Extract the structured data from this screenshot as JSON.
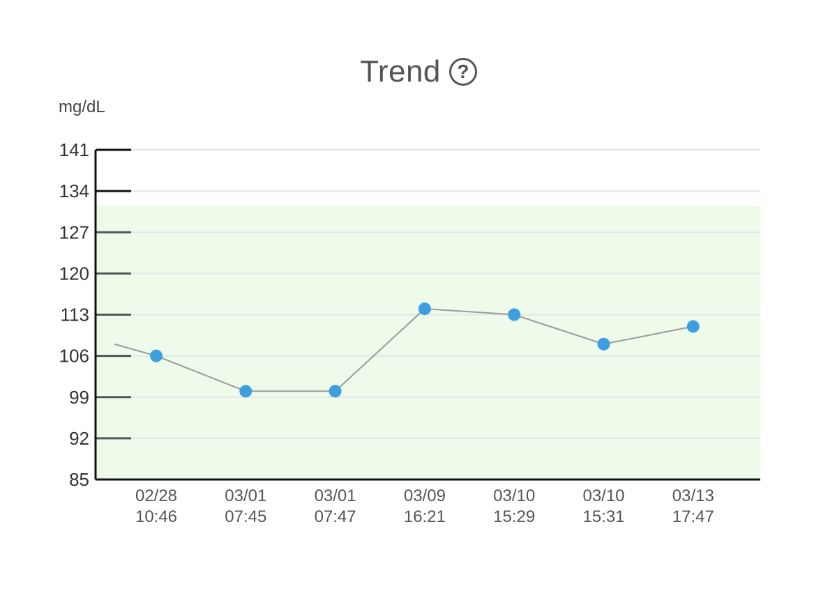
{
  "header": {
    "title": "Trend",
    "help_icon_label": "?"
  },
  "chart_data": {
    "type": "line",
    "ylabel": "mg/dL",
    "ylim": [
      85,
      141
    ],
    "yticks": [
      "141",
      "134",
      "127",
      "120",
      "113",
      "106",
      "99",
      "92",
      "85"
    ],
    "target_range": [
      85,
      131.5
    ],
    "categories": [
      [
        "02/28",
        "10:46"
      ],
      [
        "03/01",
        "07:45"
      ],
      [
        "03/01",
        "07:47"
      ],
      [
        "03/09",
        "16:21"
      ],
      [
        "03/10",
        "15:29"
      ],
      [
        "03/10",
        "15:31"
      ],
      [
        "03/13",
        "17:47"
      ]
    ],
    "values": [
      106,
      100,
      100,
      114,
      113,
      108,
      111
    ],
    "leading_value": 108,
    "grid": true,
    "colors": {
      "point": "#3d9fe0",
      "line": "#9a9a9a",
      "target_band": "#eefbea",
      "axis": "#111111",
      "grid": "#e6e6e6"
    }
  }
}
